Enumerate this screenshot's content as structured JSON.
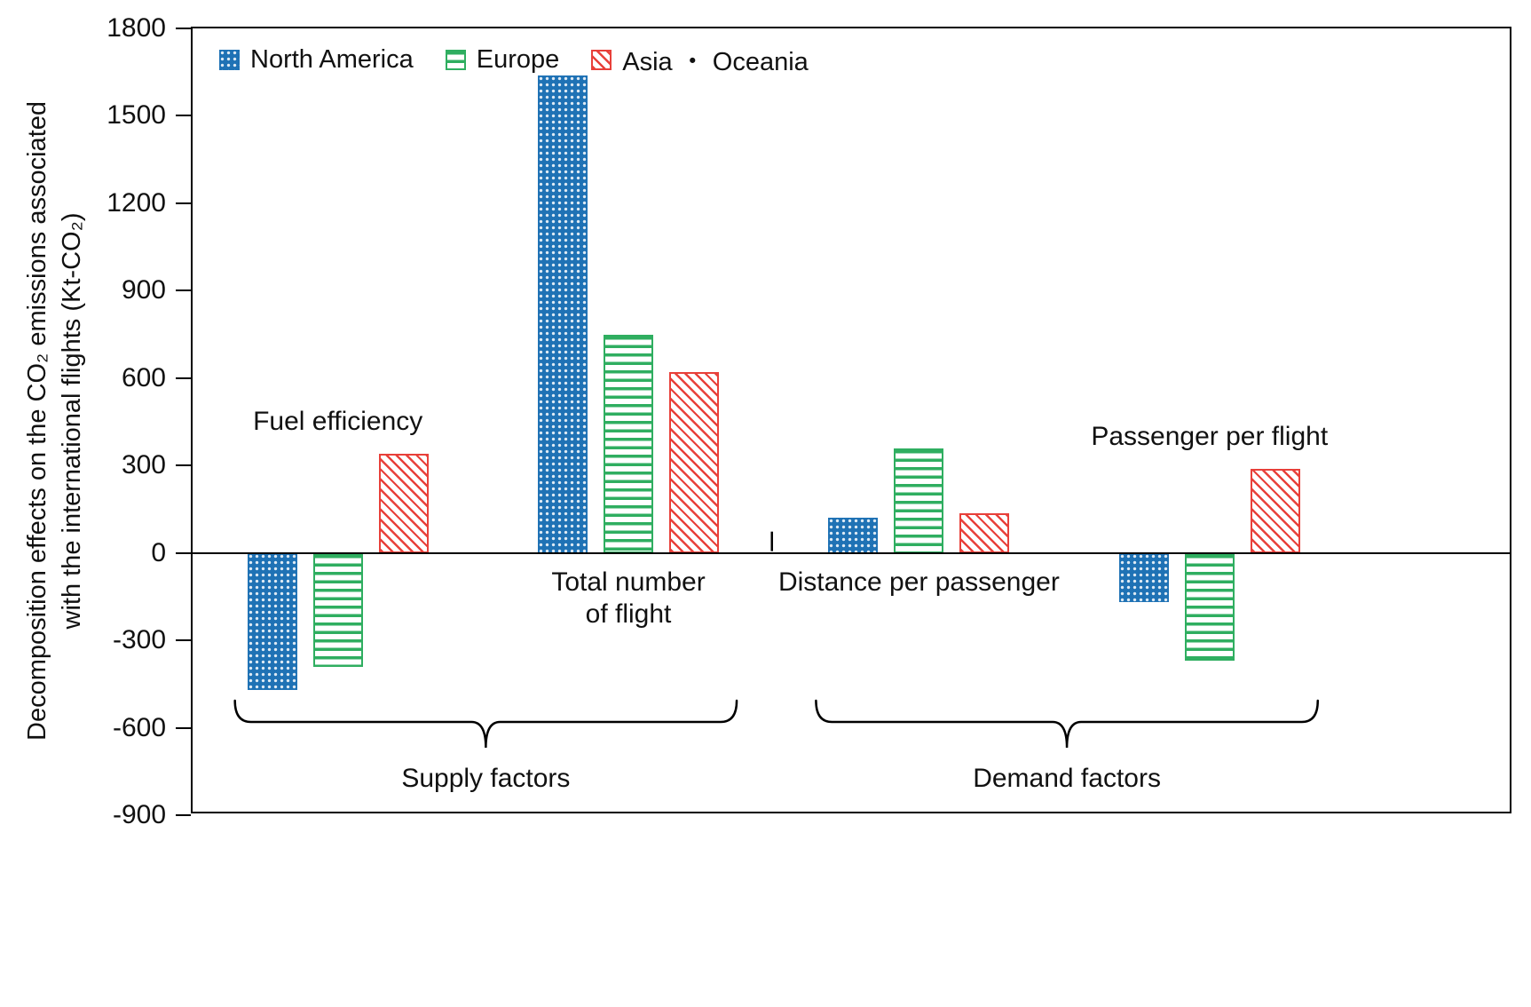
{
  "figure": {
    "y_axis_title_line1": "Decomposition effects on the CO₂ emissions associated",
    "y_axis_title_line2": "with the international flights (Kt-CO₂)"
  },
  "chart_data": {
    "type": "bar",
    "title": "",
    "categories": [
      "Fuel efficiency",
      "Total number of flight",
      "Distance per passenger",
      "Passenger per flight"
    ],
    "series": [
      {
        "name": "North America",
        "pattern": "dots",
        "color": "#1f72b5",
        "values": [
          -470,
          1640,
          120,
          -170
        ]
      },
      {
        "name": "Europe",
        "pattern": "hlines",
        "color": "#2fae60",
        "values": [
          -390,
          750,
          360,
          -370
        ]
      },
      {
        "name": "Asia ・ Oceania",
        "pattern": "diagonal",
        "color": "#e8403a",
        "values": [
          340,
          620,
          135,
          290
        ]
      }
    ],
    "ylabel": "Decomposition effects on the CO₂ emissions associated with the international flights (Kt-CO₂)",
    "ylim": [
      -900,
      1800
    ],
    "ytick_step": 300,
    "yticks": [
      1800,
      1500,
      1200,
      900,
      600,
      300,
      0,
      -300,
      -600,
      -900
    ],
    "grid": false,
    "legend_position": "top-left-inside",
    "annotations": [
      {
        "text": "Fuel efficiency",
        "group": 0,
        "placement": "above-bars"
      },
      {
        "text": "Total number\nof flight",
        "group": 1,
        "placement": "below-axis"
      },
      {
        "text": "Distance per passenger",
        "group": 2,
        "placement": "below-axis"
      },
      {
        "text": "Passenger per flight",
        "group": 3,
        "placement": "above-bars"
      }
    ],
    "group_braces": [
      {
        "label": "Supply factors",
        "from_group": 0,
        "to_group": 1
      },
      {
        "label": "Demand factors",
        "from_group": 2,
        "to_group": 3
      }
    ]
  }
}
